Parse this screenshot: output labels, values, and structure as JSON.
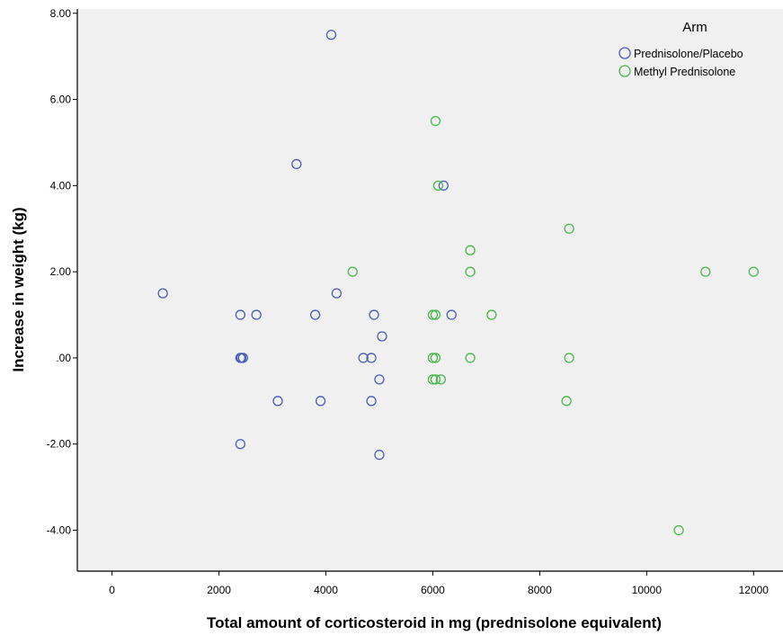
{
  "chart_data": {
    "type": "scatter",
    "title": "",
    "xlabel": "Total amount of corticosteroid in mg (prednisolone equivalent)",
    "ylabel": "Increase in weight (kg)",
    "xlim": [
      -650,
      12550
    ],
    "ylim": [
      -4.95,
      8.1
    ],
    "x_ticks": [
      0,
      2000,
      4000,
      6000,
      8000,
      10000,
      12000
    ],
    "x_tick_labels": [
      "0",
      "2000",
      "4000",
      "6000",
      "8000",
      "10000",
      "12000"
    ],
    "y_ticks": [
      8,
      6,
      4,
      2,
      0,
      -2,
      -4
    ],
    "y_tick_labels": [
      "8.00",
      "6.00",
      "4.00",
      "2.00",
      ".00",
      "-2.00",
      "-4.00"
    ],
    "grid": false,
    "plot_background": "#f0f0f0",
    "legend": {
      "title": "Arm",
      "position": "top-right"
    },
    "series": [
      {
        "name": "Prednisolone/Placebo",
        "color": "#4a5fb5",
        "points": [
          [
            950,
            1.5
          ],
          [
            2400,
            1.0
          ],
          [
            2400,
            0.0
          ],
          [
            2420,
            0.0
          ],
          [
            2450,
            0.0
          ],
          [
            2400,
            -2.0
          ],
          [
            2700,
            1.0
          ],
          [
            3100,
            -1.0
          ],
          [
            3450,
            4.5
          ],
          [
            3800,
            1.0
          ],
          [
            3900,
            -1.0
          ],
          [
            4100,
            7.5
          ],
          [
            4200,
            1.5
          ],
          [
            4700,
            0.0
          ],
          [
            4850,
            0.0
          ],
          [
            4850,
            -1.0
          ],
          [
            4900,
            1.0
          ],
          [
            5000,
            -0.5
          ],
          [
            5050,
            0.5
          ],
          [
            5000,
            -2.25
          ],
          [
            6200,
            4.0
          ],
          [
            6350,
            1.0
          ]
        ]
      },
      {
        "name": "Methyl Prednisolone",
        "color": "#49b84b",
        "points": [
          [
            4500,
            2.0
          ],
          [
            6050,
            5.5
          ],
          [
            6100,
            4.0
          ],
          [
            6000,
            -0.5
          ],
          [
            6050,
            -0.5
          ],
          [
            6150,
            -0.5
          ],
          [
            6000,
            1.0
          ],
          [
            6050,
            1.0
          ],
          [
            6000,
            0.0
          ],
          [
            6050,
            0.0
          ],
          [
            6700,
            2.5
          ],
          [
            6700,
            2.0
          ],
          [
            6700,
            0.0
          ],
          [
            7100,
            1.0
          ],
          [
            8550,
            3.0
          ],
          [
            8550,
            0.0
          ],
          [
            8500,
            -1.0
          ],
          [
            10600,
            -4.0
          ],
          [
            11100,
            2.0
          ],
          [
            12000,
            2.0
          ]
        ]
      }
    ]
  }
}
